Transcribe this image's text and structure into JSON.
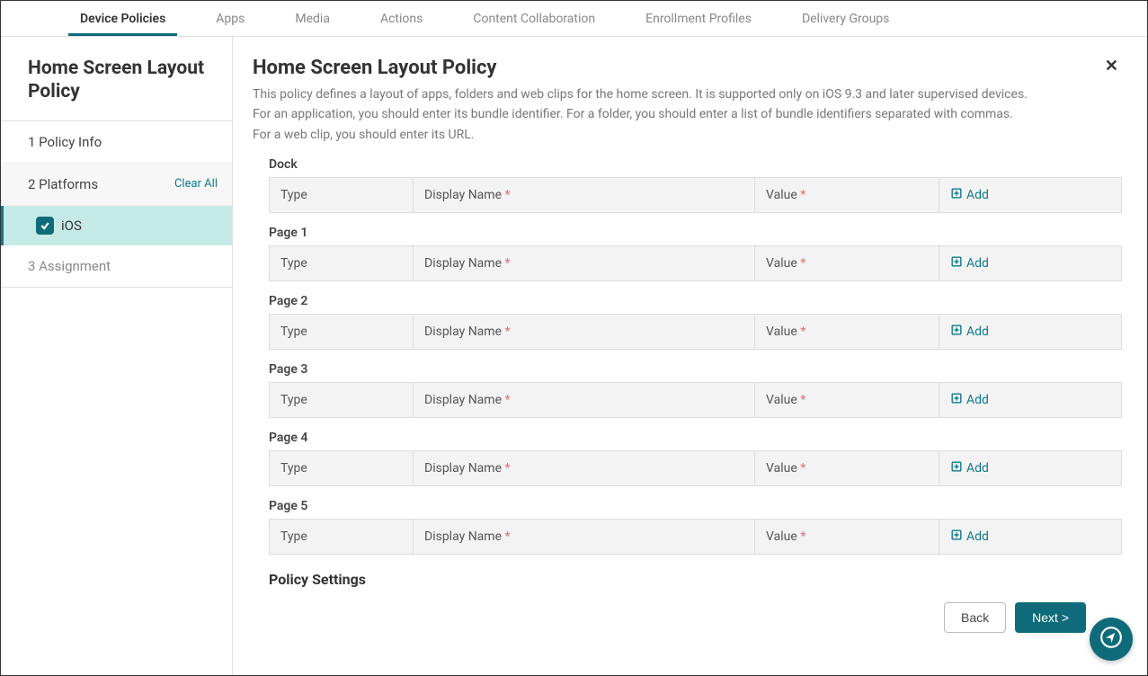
{
  "topnav": {
    "tabs": [
      {
        "label": "Device Policies",
        "active": true
      },
      {
        "label": "Apps",
        "active": false
      },
      {
        "label": "Media",
        "active": false
      },
      {
        "label": "Actions",
        "active": false
      },
      {
        "label": "Content Collaboration",
        "active": false
      },
      {
        "label": "Enrollment Profiles",
        "active": false
      },
      {
        "label": "Delivery Groups",
        "active": false
      }
    ]
  },
  "sidebar": {
    "title": "Home Screen Layout Policy",
    "step1": "1  Policy Info",
    "step2": "2  Platforms",
    "clear_all": "Clear All",
    "substep_ios": "iOS",
    "step3": "3  Assignment"
  },
  "content": {
    "title": "Home Screen Layout Policy",
    "close": "✕",
    "desc_line1": "This policy defines a layout of apps, folders and web clips for the home screen. It is supported only on iOS 9.3 and later supervised devices.",
    "desc_line2": "For an application, you should enter its bundle identifier. For a folder, you should enter a list of bundle identifiers separated with commas.",
    "desc_line3": "For a web clip, you should enter its URL.",
    "sections": [
      {
        "label": "Dock"
      },
      {
        "label": "Page 1"
      },
      {
        "label": "Page 2"
      },
      {
        "label": "Page 3"
      },
      {
        "label": "Page 4"
      },
      {
        "label": "Page 5"
      }
    ],
    "cols": {
      "type": "Type",
      "dname": "Display Name",
      "value": "Value",
      "add": "Add",
      "star": "*"
    },
    "policy_settings": "Policy Settings",
    "back": "Back",
    "next": "Next >"
  }
}
